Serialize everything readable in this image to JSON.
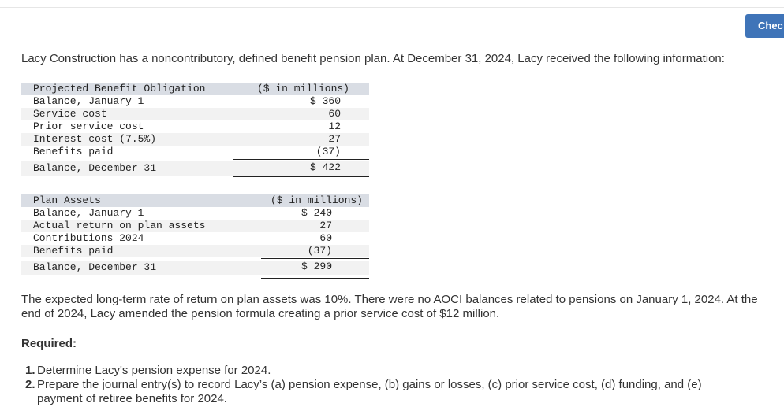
{
  "button": "Chec",
  "intro": "Lacy Construction has a noncontributory, defined benefit pension plan. At December 31, 2024, Lacy received the following information:",
  "pbo_table": {
    "header": [
      "Projected Benefit Obligation",
      "($ in millions)"
    ],
    "rows": [
      [
        "Balance, January 1",
        "$ 360"
      ],
      [
        "Service cost",
        "60"
      ],
      [
        "Prior service cost",
        "12"
      ],
      [
        "Interest cost (7.5%)",
        "27"
      ],
      [
        "Benefits paid",
        "(37)"
      ]
    ],
    "total": [
      "Balance, December 31",
      "$ 422"
    ]
  },
  "assets_table": {
    "header": [
      "Plan Assets",
      "($ in millions)"
    ],
    "rows": [
      [
        "Balance, January 1",
        "$ 240"
      ],
      [
        "Actual return on plan assets",
        "27"
      ],
      [
        "Contributions 2024",
        "60"
      ],
      [
        "Benefits paid",
        "(37)"
      ]
    ],
    "total": [
      "Balance, December 31",
      "$ 290"
    ]
  },
  "paragraph": "The expected long-term rate of return on plan assets was 10%. There were no AOCI balances related to pensions on January 1, 2024. At the end of 2024, Lacy amended the pension formula creating a prior service cost of $12 million.",
  "required": {
    "heading": "Required:",
    "items": [
      {
        "number": "1.",
        "text": "Determine Lacy's pension expense for 2024."
      },
      {
        "number": "2.",
        "text": "Prepare the journal entry(s) to record Lacy’s (a) pension expense, (b) gains or losses, (c) prior service cost, (d) funding, and (e) payment of retiree benefits for 2024."
      }
    ]
  }
}
